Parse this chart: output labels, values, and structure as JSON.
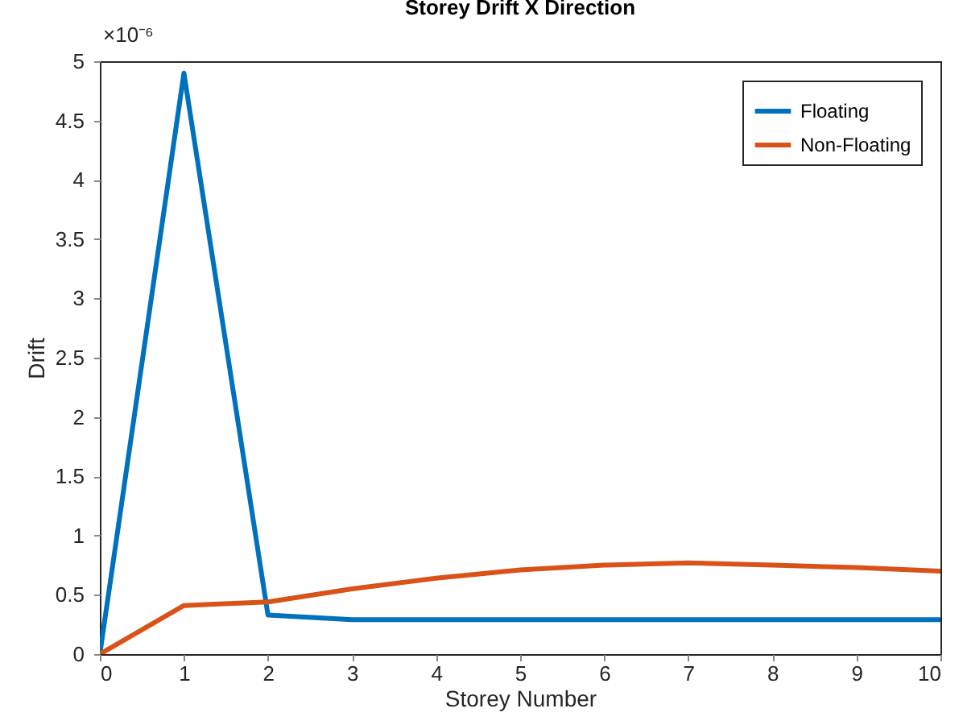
{
  "chart_data": {
    "type": "line",
    "title": "Storey Drift X Direction",
    "xlabel": "Storey Number",
    "ylabel": "Drift",
    "annotations": [
      "×10⁻⁶"
    ],
    "x": [
      0,
      1,
      2,
      3,
      4,
      5,
      6,
      7,
      8,
      9,
      10
    ],
    "series": [
      {
        "name": "Floating",
        "color": "#0072bd",
        "values": [
          0,
          4.9,
          0.33,
          0.29,
          0.29,
          0.29,
          0.29,
          0.29,
          0.29,
          0.29,
          0.29
        ]
      },
      {
        "name": "Non-Floating",
        "color": "#d95319",
        "values": [
          0,
          0.41,
          0.44,
          0.55,
          0.64,
          0.71,
          0.75,
          0.77,
          0.75,
          0.73,
          0.7
        ]
      }
    ],
    "xlim": [
      0,
      10
    ],
    "xticks": [
      0,
      1,
      2,
      3,
      4,
      5,
      6,
      7,
      8,
      9,
      10
    ],
    "ylim": [
      0,
      5
    ],
    "yticks": [
      0,
      0.5,
      1,
      1.5,
      2,
      2.5,
      3,
      3.5,
      4,
      4.5,
      5
    ],
    "grid": false,
    "legend": "top right",
    "marker": "none",
    "line_style": "solid"
  }
}
